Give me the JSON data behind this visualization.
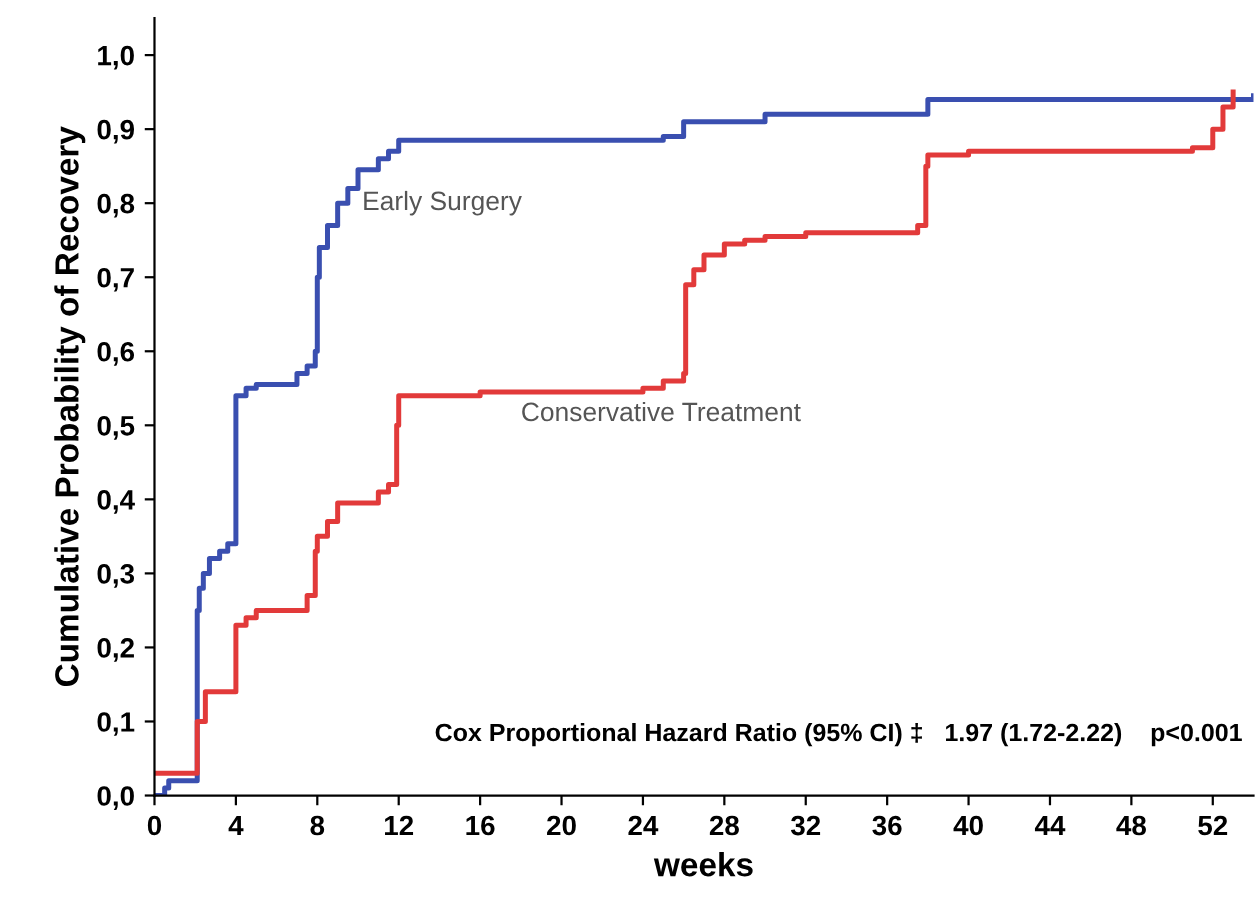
{
  "chart_data": {
    "type": "step",
    "xlabel": "weeks",
    "ylabel": "Cumulative Probability of Recovery",
    "xlim": [
      0,
      54
    ],
    "xticks": [
      0,
      4,
      8,
      12,
      16,
      20,
      24,
      28,
      32,
      36,
      40,
      44,
      48,
      52
    ],
    "ylim": [
      0,
      1.05
    ],
    "yticks": [
      {
        "value": 0,
        "label": "0,0"
      },
      {
        "value": 0.1,
        "label": "0,1"
      },
      {
        "value": 0.2,
        "label": "0,2"
      },
      {
        "value": 0.3,
        "label": "0,3"
      },
      {
        "value": 0.4,
        "label": "0,4"
      },
      {
        "value": 0.5,
        "label": "0,5"
      },
      {
        "value": 0.6,
        "label": "0,6"
      },
      {
        "value": 0.7,
        "label": "0,7"
      },
      {
        "value": 0.8,
        "label": "0,8"
      },
      {
        "value": 0.9,
        "label": "0,9"
      },
      {
        "value": 1,
        "label": "1,0"
      }
    ],
    "grid": false,
    "legend": false,
    "series": [
      {
        "name": "Early Surgery",
        "color": "#3a4fb0",
        "x": [
          0,
          0.5,
          0.7,
          2,
          2.1,
          2.2,
          2.4,
          2.7,
          3.2,
          3.6,
          4,
          4.5,
          5,
          7,
          7.5,
          7.9,
          8,
          8.1,
          8.5,
          9,
          9.5,
          10,
          11,
          11.5,
          12,
          25,
          26,
          30,
          38,
          54
        ],
        "values": [
          0,
          0.01,
          0.02,
          0.02,
          0.25,
          0.28,
          0.3,
          0.32,
          0.33,
          0.34,
          0.54,
          0.55,
          0.555,
          0.57,
          0.58,
          0.6,
          0.7,
          0.74,
          0.77,
          0.8,
          0.82,
          0.845,
          0.86,
          0.87,
          0.885,
          0.89,
          0.91,
          0.92,
          0.94,
          0.945
        ]
      },
      {
        "name": "Conservative Treatment",
        "color": "#e23a3a",
        "x": [
          0,
          2,
          2.1,
          2.5,
          4,
          4.5,
          5,
          7.5,
          7.9,
          8,
          8.5,
          9,
          11,
          11.5,
          11.9,
          12,
          16,
          24,
          25,
          26,
          26.1,
          26.5,
          27,
          28,
          29,
          30,
          32,
          37.5,
          37.9,
          38,
          40,
          51,
          52,
          52.5,
          53
        ],
        "values": [
          0.03,
          0.03,
          0.1,
          0.14,
          0.23,
          0.24,
          0.25,
          0.27,
          0.33,
          0.35,
          0.37,
          0.395,
          0.41,
          0.42,
          0.5,
          0.54,
          0.545,
          0.55,
          0.56,
          0.57,
          0.69,
          0.71,
          0.73,
          0.745,
          0.75,
          0.755,
          0.76,
          0.77,
          0.85,
          0.865,
          0.87,
          0.875,
          0.9,
          0.93,
          0.95
        ]
      }
    ],
    "annotations": [
      "Cox Proportional Hazard Ratio (95% CI) ‡   1.97 (1.72-2.22)    p<0.001"
    ]
  }
}
